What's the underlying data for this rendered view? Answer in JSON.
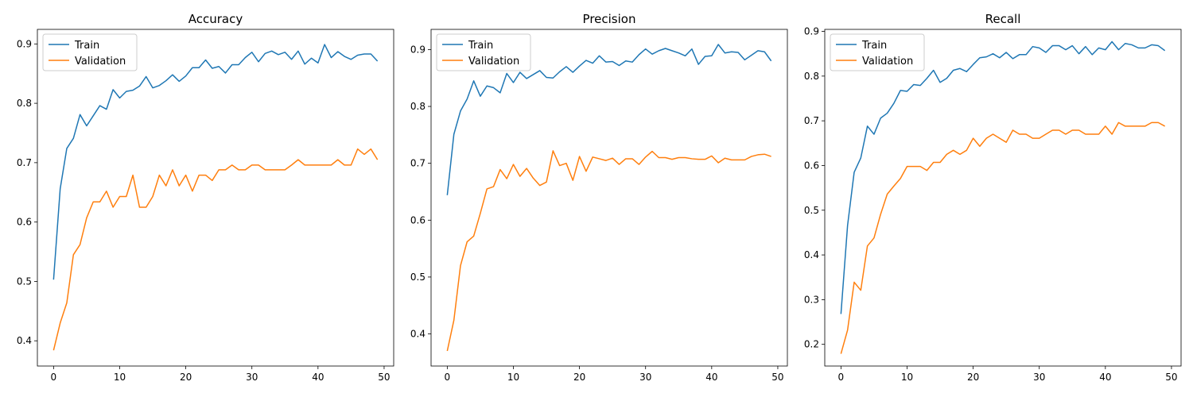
{
  "colors": {
    "train": "#1f77b4",
    "validation": "#ff7f0e",
    "axis": "#000000"
  },
  "chart_data": [
    {
      "type": "line",
      "title": "Accuracy",
      "xlabel": "",
      "ylabel": "",
      "xlim": [
        -2.45,
        51.45
      ],
      "ylim": [
        0.3575,
        0.9245
      ],
      "xticks": [
        0,
        10,
        20,
        30,
        40,
        50
      ],
      "xtick_labels": [
        "0",
        "10",
        "20",
        "30",
        "40",
        "50"
      ],
      "yticks": [
        0.4,
        0.5,
        0.6,
        0.7,
        0.8,
        0.9
      ],
      "ytick_labels": [
        "0.4",
        "0.5",
        "0.6",
        "0.7",
        "0.8",
        "0.9"
      ],
      "legend": "upper-left",
      "grid": false,
      "x": [
        0,
        1,
        2,
        3,
        4,
        5,
        6,
        7,
        8,
        9,
        10,
        11,
        12,
        13,
        14,
        15,
        16,
        17,
        18,
        19,
        20,
        21,
        22,
        23,
        24,
        25,
        26,
        27,
        28,
        29,
        30,
        31,
        32,
        33,
        34,
        35,
        36,
        37,
        38,
        39,
        40,
        41,
        42,
        43,
        44,
        45,
        46,
        47,
        48,
        49
      ],
      "series": [
        {
          "name": "Train",
          "values": [
            0.503,
            0.656,
            0.724,
            0.741,
            0.781,
            0.762,
            0.779,
            0.796,
            0.79,
            0.823,
            0.809,
            0.82,
            0.822,
            0.829,
            0.845,
            0.826,
            0.83,
            0.838,
            0.848,
            0.837,
            0.846,
            0.86,
            0.86,
            0.873,
            0.859,
            0.862,
            0.851,
            0.865,
            0.865,
            0.877,
            0.886,
            0.87,
            0.884,
            0.888,
            0.882,
            0.886,
            0.874,
            0.888,
            0.866,
            0.876,
            0.868,
            0.899,
            0.877,
            0.887,
            0.879,
            0.874,
            0.881,
            0.883,
            0.883,
            0.871
          ]
        },
        {
          "name": "Validation",
          "values": [
            0.384,
            0.43,
            0.464,
            0.545,
            0.562,
            0.607,
            0.634,
            0.634,
            0.652,
            0.625,
            0.643,
            0.643,
            0.679,
            0.625,
            0.625,
            0.643,
            0.679,
            0.661,
            0.688,
            0.661,
            0.679,
            0.652,
            0.679,
            0.679,
            0.67,
            0.688,
            0.688,
            0.696,
            0.688,
            0.688,
            0.696,
            0.696,
            0.688,
            0.688,
            0.688,
            0.688,
            0.696,
            0.705,
            0.696,
            0.696,
            0.696,
            0.696,
            0.696,
            0.705,
            0.696,
            0.696,
            0.723,
            0.714,
            0.723,
            0.705
          ]
        }
      ]
    },
    {
      "type": "line",
      "title": "Precision",
      "xlabel": "",
      "ylabel": "",
      "xlim": [
        -2.45,
        51.45
      ],
      "ylim": [
        0.3435,
        0.9355
      ],
      "xticks": [
        0,
        10,
        20,
        30,
        40,
        50
      ],
      "xtick_labels": [
        "0",
        "10",
        "20",
        "30",
        "40",
        "50"
      ],
      "yticks": [
        0.4,
        0.5,
        0.6,
        0.7,
        0.8,
        0.9
      ],
      "ytick_labels": [
        "0.4",
        "0.5",
        "0.6",
        "0.7",
        "0.8",
        "0.9"
      ],
      "legend": "upper-left",
      "grid": false,
      "x": [
        0,
        1,
        2,
        3,
        4,
        5,
        6,
        7,
        8,
        9,
        10,
        11,
        12,
        13,
        14,
        15,
        16,
        17,
        18,
        19,
        20,
        21,
        22,
        23,
        24,
        25,
        26,
        27,
        28,
        29,
        30,
        31,
        32,
        33,
        34,
        35,
        36,
        37,
        38,
        39,
        40,
        41,
        42,
        43,
        44,
        45,
        46,
        47,
        48,
        49
      ],
      "series": [
        {
          "name": "Train",
          "values": [
            0.644,
            0.751,
            0.792,
            0.813,
            0.845,
            0.818,
            0.836,
            0.833,
            0.824,
            0.858,
            0.842,
            0.86,
            0.849,
            0.856,
            0.863,
            0.851,
            0.85,
            0.861,
            0.87,
            0.86,
            0.871,
            0.881,
            0.876,
            0.889,
            0.878,
            0.879,
            0.872,
            0.88,
            0.878,
            0.891,
            0.901,
            0.892,
            0.898,
            0.902,
            0.898,
            0.894,
            0.889,
            0.901,
            0.874,
            0.888,
            0.889,
            0.909,
            0.894,
            0.896,
            0.895,
            0.882,
            0.89,
            0.898,
            0.896,
            0.88
          ]
        },
        {
          "name": "Validation",
          "values": [
            0.37,
            0.424,
            0.52,
            0.562,
            0.572,
            0.612,
            0.655,
            0.659,
            0.689,
            0.673,
            0.698,
            0.677,
            0.691,
            0.674,
            0.661,
            0.667,
            0.722,
            0.696,
            0.7,
            0.67,
            0.712,
            0.686,
            0.711,
            0.708,
            0.705,
            0.709,
            0.698,
            0.708,
            0.708,
            0.698,
            0.711,
            0.721,
            0.71,
            0.71,
            0.707,
            0.71,
            0.71,
            0.708,
            0.707,
            0.707,
            0.713,
            0.701,
            0.709,
            0.706,
            0.706,
            0.706,
            0.712,
            0.715,
            0.716,
            0.712
          ]
        }
      ]
    },
    {
      "type": "line",
      "title": "Recall",
      "xlabel": "",
      "ylabel": "",
      "xlim": [
        -2.45,
        51.45
      ],
      "ylim": [
        0.1515,
        0.9045
      ],
      "xticks": [
        0,
        10,
        20,
        30,
        40,
        50
      ],
      "xtick_labels": [
        "0",
        "10",
        "20",
        "30",
        "40",
        "50"
      ],
      "yticks": [
        0.2,
        0.3,
        0.4,
        0.5,
        0.6,
        0.7,
        0.8,
        0.9
      ],
      "ytick_labels": [
        "0.2",
        "0.3",
        "0.4",
        "0.5",
        "0.6",
        "0.7",
        "0.8",
        "0.9"
      ],
      "legend": "upper-left",
      "grid": false,
      "x": [
        0,
        1,
        2,
        3,
        4,
        5,
        6,
        7,
        8,
        9,
        10,
        11,
        12,
        13,
        14,
        15,
        16,
        17,
        18,
        19,
        20,
        21,
        22,
        23,
        24,
        25,
        26,
        27,
        28,
        29,
        30,
        31,
        32,
        33,
        34,
        35,
        36,
        37,
        38,
        39,
        40,
        41,
        42,
        43,
        44,
        45,
        46,
        47,
        48,
        49
      ],
      "series": [
        {
          "name": "Train",
          "values": [
            0.268,
            0.466,
            0.585,
            0.617,
            0.688,
            0.67,
            0.706,
            0.717,
            0.739,
            0.768,
            0.766,
            0.781,
            0.779,
            0.795,
            0.813,
            0.786,
            0.795,
            0.813,
            0.817,
            0.81,
            0.826,
            0.841,
            0.843,
            0.85,
            0.841,
            0.853,
            0.839,
            0.848,
            0.848,
            0.866,
            0.863,
            0.853,
            0.868,
            0.868,
            0.859,
            0.868,
            0.85,
            0.866,
            0.848,
            0.863,
            0.859,
            0.877,
            0.859,
            0.873,
            0.87,
            0.863,
            0.863,
            0.87,
            0.868,
            0.857
          ]
        },
        {
          "name": "Validation",
          "values": [
            0.179,
            0.232,
            0.339,
            0.321,
            0.42,
            0.438,
            0.491,
            0.536,
            0.554,
            0.571,
            0.598,
            0.598,
            0.598,
            0.589,
            0.607,
            0.607,
            0.625,
            0.634,
            0.625,
            0.634,
            0.661,
            0.643,
            0.661,
            0.67,
            0.661,
            0.652,
            0.679,
            0.67,
            0.67,
            0.661,
            0.661,
            0.67,
            0.679,
            0.679,
            0.67,
            0.679,
            0.679,
            0.67,
            0.67,
            0.67,
            0.688,
            0.67,
            0.696,
            0.688,
            0.688,
            0.688,
            0.688,
            0.696,
            0.696,
            0.688
          ]
        }
      ]
    }
  ]
}
